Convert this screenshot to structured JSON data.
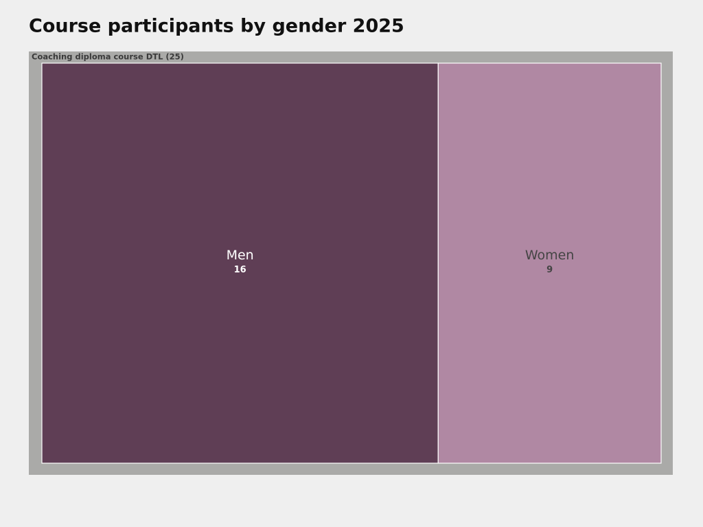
{
  "chart_data": {
    "type": "treemap",
    "title": "Course participants by gender 2025",
    "group_label": "Coaching diploma course DTL (25)",
    "categories": [
      "Men",
      "Women"
    ],
    "values": [
      16,
      9
    ],
    "colors": [
      "#5f3e55",
      "#b088a3"
    ]
  }
}
